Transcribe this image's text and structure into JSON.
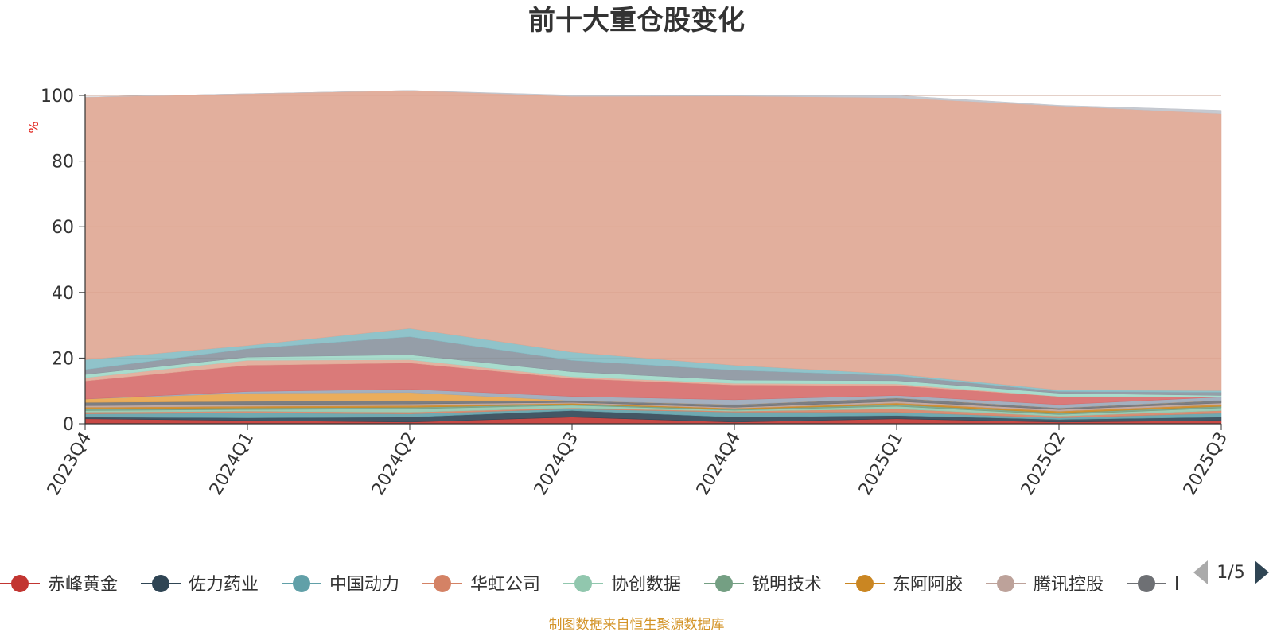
{
  "chart_data": {
    "type": "area",
    "stacked": true,
    "title": "前十大重仓股变化",
    "unit_label": "%",
    "categories": [
      "2023Q4",
      "2024Q1",
      "2024Q2",
      "2024Q3",
      "2024Q4",
      "2025Q1",
      "2025Q2",
      "2025Q3"
    ],
    "ylim": [
      0,
      100
    ],
    "yticks": [
      0,
      20,
      40,
      60,
      80,
      100
    ],
    "grid": true,
    "series": [
      {
        "name": "赤峰黄金",
        "color": "#c23531",
        "values": [
          1.5,
          1.0,
          0.5,
          2.0,
          0.5,
          1.5,
          0.5,
          1.0
        ]
      },
      {
        "name": "佐力药业",
        "color": "#2f4554",
        "values": [
          0.5,
          0.8,
          1.5,
          2.0,
          1.5,
          1.0,
          0.8,
          1.0
        ]
      },
      {
        "name": "中国动力",
        "color": "#61a0a8",
        "values": [
          1.0,
          1.5,
          1.0,
          0.5,
          1.5,
          1.0,
          0.5,
          1.2
        ]
      },
      {
        "name": "华虹公司",
        "color": "#d48265",
        "values": [
          0.5,
          0.5,
          0.5,
          0.3,
          0.3,
          1.0,
          0.5,
          0.8
        ]
      },
      {
        "name": "协创数据",
        "color": "#91c7ae",
        "values": [
          0.5,
          0.5,
          1.0,
          0.8,
          0.3,
          0.8,
          0.5,
          0.8
        ]
      },
      {
        "name": "锐明技术",
        "color": "#749f83",
        "values": [
          0.5,
          0.5,
          0.5,
          0.3,
          0.3,
          0.5,
          0.5,
          0.5
        ]
      },
      {
        "name": "东阿阿胶",
        "color": "#ca8622",
        "values": [
          0.5,
          0.5,
          0.5,
          0.3,
          0.3,
          0.5,
          0.5,
          0.5
        ]
      },
      {
        "name": "腾讯控股",
        "color": "#bda29a",
        "values": [
          0.5,
          0.5,
          0.5,
          0.3,
          0.3,
          0.5,
          0.5,
          0.5
        ]
      },
      {
        "name": "",
        "color": "#6e7074",
        "values": [
          1.0,
          1.0,
          1.0,
          0.5,
          0.8,
          1.0,
          0.5,
          0.8
        ]
      },
      {
        "name": "",
        "color": "#e8a44a",
        "values": [
          1.0,
          2.5,
          2.5,
          0.0,
          0.0,
          0.0,
          0.0,
          0.0
        ]
      },
      {
        "name": "",
        "color": "#9aa7b8",
        "values": [
          0.0,
          0.5,
          1.0,
          1.3,
          1.5,
          0.8,
          1.0,
          1.0
        ]
      },
      {
        "name": "",
        "color": "#d66b6a",
        "values": [
          5.5,
          8.0,
          8.0,
          5.5,
          4.5,
          3.0,
          2.5,
          0.0
        ]
      },
      {
        "name": "",
        "color": "#e0a896",
        "values": [
          1.0,
          1.5,
          1.0,
          0.5,
          0.5,
          0.5,
          0.0,
          0.0
        ]
      },
      {
        "name": "",
        "color": "#9ed8c8",
        "values": [
          1.0,
          1.0,
          1.5,
          1.5,
          1.0,
          1.0,
          1.0,
          0.5
        ]
      },
      {
        "name": "",
        "color": "#8a949e",
        "values": [
          1.5,
          2.5,
          5.5,
          3.5,
          3.0,
          1.5,
          0.5,
          1.0
        ]
      },
      {
        "name": "",
        "color": "#84bcc4",
        "values": [
          3.0,
          1.0,
          2.5,
          2.5,
          1.5,
          0.5,
          0.5,
          0.5
        ]
      },
      {
        "name": "",
        "color": "#dfa692",
        "values": [
          80.0,
          76.7,
          72.5,
          77.9,
          82.0,
          84.2,
          86.5,
          84.4
        ]
      },
      {
        "name": "",
        "color": "#c0c4cc",
        "values": [
          0.0,
          0.0,
          0.0,
          0.4,
          0.2,
          0.7,
          0.2,
          1.0
        ]
      }
    ],
    "legend": {
      "position": "bottom",
      "items": [
        "赤峰黄金",
        "佐力药业",
        "中国动力",
        "华虹公司",
        "协创数据",
        "锐明技术",
        "东阿阿胶",
        "腾讯控股",
        "l"
      ],
      "page": "1/5"
    }
  },
  "footer": "制图数据来自恒生聚源数据库",
  "icons": {
    "prev": "triangle-left-icon",
    "next": "triangle-right-icon"
  }
}
